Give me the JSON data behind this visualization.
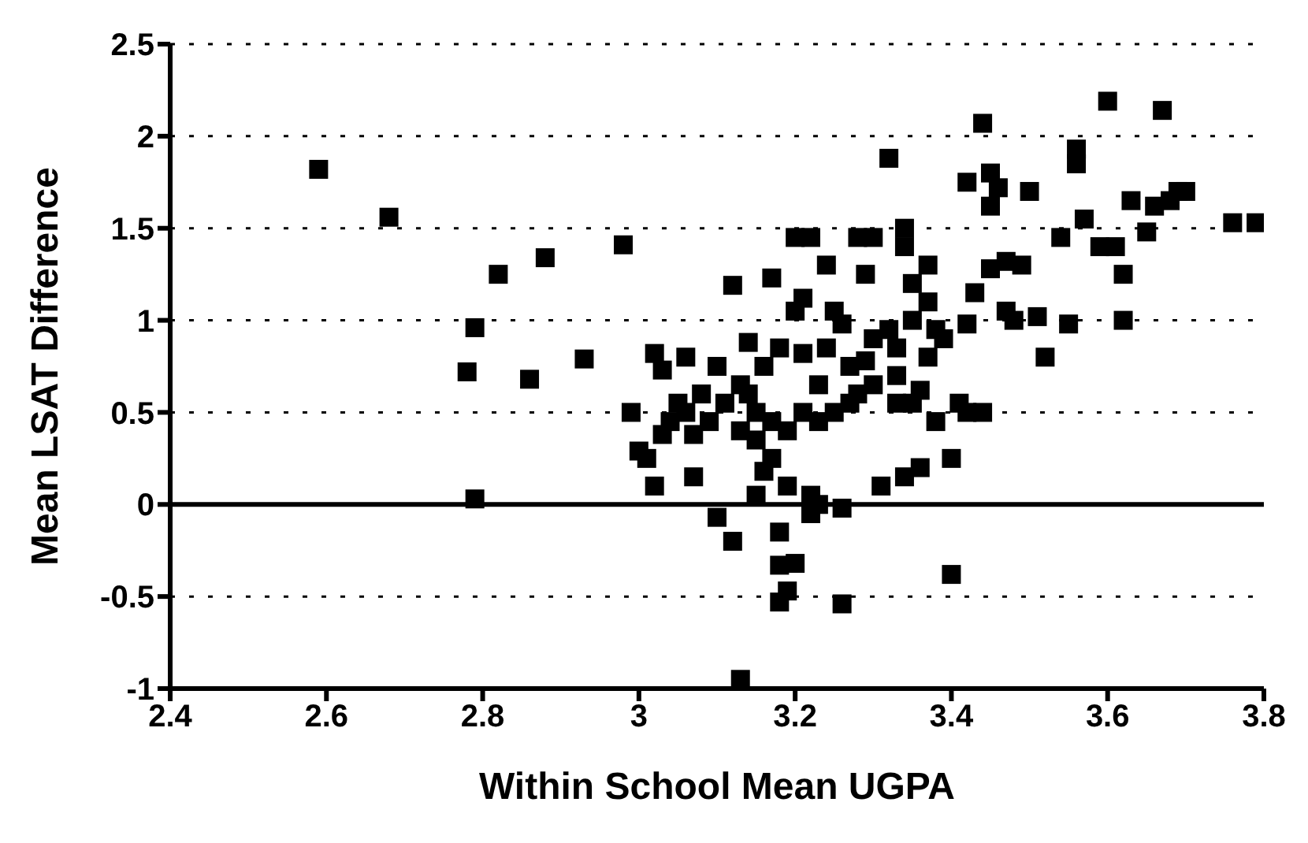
{
  "chart_data": {
    "type": "scatter",
    "xlabel": "Within School Mean UGPA",
    "ylabel": "Mean LSAT Difference",
    "xlim": [
      2.4,
      3.8
    ],
    "xticks": [
      2.4,
      2.6,
      2.8,
      3,
      3.2,
      3.4,
      3.6,
      3.8
    ],
    "ylim": [
      -1,
      2.5
    ],
    "yticks": [
      -1,
      -0.5,
      0,
      0.5,
      1,
      1.5,
      2,
      2.5
    ],
    "grid": "y",
    "marker": "square",
    "ref_lines": [
      {
        "axis": "y",
        "value": 0,
        "label": null
      }
    ],
    "series": [
      {
        "color": "#000000",
        "x": [
          2.59,
          2.68,
          2.78,
          2.79,
          2.79,
          2.82,
          2.86,
          2.88,
          2.93,
          2.98,
          2.99,
          3.0,
          3.01,
          3.02,
          3.02,
          3.03,
          3.03,
          3.04,
          3.05,
          3.06,
          3.06,
          3.07,
          3.07,
          3.08,
          3.09,
          3.1,
          3.1,
          3.11,
          3.12,
          3.12,
          3.13,
          3.13,
          3.14,
          3.14,
          3.15,
          3.15,
          3.15,
          3.16,
          3.16,
          3.17,
          3.17,
          3.17,
          3.18,
          3.18,
          3.18,
          3.18,
          3.19,
          3.13,
          3.19,
          3.19,
          3.2,
          3.2,
          3.2,
          3.21,
          3.21,
          3.21,
          3.22,
          3.22,
          3.22,
          3.23,
          3.23,
          3.23,
          3.24,
          3.24,
          3.25,
          3.25,
          3.26,
          3.26,
          3.26,
          3.27,
          3.27,
          3.28,
          3.28,
          3.29,
          3.29,
          3.3,
          3.3,
          3.3,
          3.31,
          3.32,
          3.32,
          3.33,
          3.33,
          3.33,
          3.34,
          3.34,
          3.34,
          3.35,
          3.35,
          3.35,
          3.36,
          3.36,
          3.37,
          3.37,
          3.37,
          3.38,
          3.38,
          3.39,
          3.4,
          3.4,
          3.41,
          3.42,
          3.42,
          3.42,
          3.43,
          3.44,
          3.44,
          3.45,
          3.45,
          3.45,
          3.46,
          3.47,
          3.47,
          3.48,
          3.49,
          3.5,
          3.51,
          3.52,
          3.54,
          3.55,
          3.56,
          3.56,
          3.57,
          3.59,
          3.6,
          3.61,
          3.62,
          3.62,
          3.63,
          3.65,
          3.66,
          3.67,
          3.68,
          3.69,
          3.7,
          3.76,
          3.79
        ],
        "values": [
          1.82,
          1.56,
          0.72,
          0.96,
          0.03,
          1.25,
          0.68,
          1.34,
          0.79,
          1.41,
          0.5,
          0.29,
          0.25,
          0.82,
          0.1,
          0.38,
          0.73,
          0.45,
          0.55,
          0.5,
          0.8,
          0.38,
          0.15,
          0.6,
          0.45,
          0.75,
          -0.07,
          0.55,
          1.19,
          -0.2,
          0.65,
          0.4,
          0.88,
          0.6,
          0.5,
          0.35,
          0.05,
          0.18,
          0.75,
          0.45,
          1.23,
          0.25,
          0.85,
          -0.33,
          -0.15,
          -0.53,
          -0.47,
          -0.95,
          0.1,
          0.4,
          1.05,
          -0.32,
          1.45,
          0.82,
          0.5,
          1.12,
          0.05,
          -0.05,
          1.45,
          0.65,
          0.45,
          0.0,
          1.3,
          0.85,
          0.5,
          1.05,
          0.98,
          -0.54,
          -0.02,
          0.55,
          0.75,
          1.45,
          0.6,
          1.25,
          0.78,
          0.9,
          0.65,
          1.45,
          0.1,
          0.95,
          1.88,
          0.55,
          0.7,
          0.85,
          1.5,
          1.4,
          0.15,
          1.2,
          0.55,
          1.0,
          0.62,
          0.2,
          0.8,
          1.3,
          1.1,
          0.45,
          0.95,
          0.9,
          0.25,
          -0.38,
          0.55,
          1.75,
          0.98,
          0.5,
          1.15,
          2.07,
          0.5,
          1.28,
          1.62,
          1.8,
          1.72,
          1.32,
          1.05,
          1.0,
          1.3,
          1.7,
          1.02,
          0.8,
          1.45,
          0.98,
          1.85,
          1.93,
          1.55,
          1.4,
          2.19,
          1.4,
          1.0,
          1.25,
          1.65,
          1.48,
          1.62,
          2.14,
          1.65,
          1.7,
          1.7,
          1.53,
          1.53
        ]
      }
    ]
  }
}
